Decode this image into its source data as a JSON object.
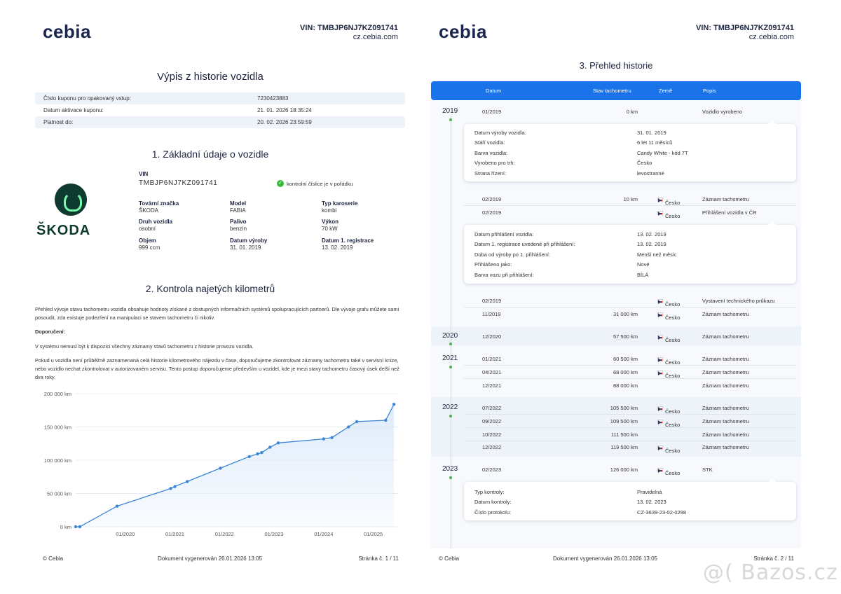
{
  "brand": {
    "logo_text": "cebia"
  },
  "header": {
    "vin": "VIN: TMBJP6NJ7KZ091741",
    "site": "cz.cebia.com"
  },
  "page1": {
    "title": "Výpis z historie vozidla",
    "coupon": [
      {
        "label": "Číslo kuponu pro opakovaný vstup:",
        "value": "7230423883"
      },
      {
        "label": "Datum aktivace kuponu:",
        "value": "21. 01. 2026 18:35:24"
      },
      {
        "label": "Platnost do:",
        "value": "20. 02. 2026 23:59:59"
      }
    ],
    "section1_title": "1. Základní údaje o vozidle",
    "make_logo_text": "ŠKODA",
    "vin_label": "VIN",
    "vin_value": "TMBJP6NJ7KZ091741",
    "vin_check": "kontrolní číslice je v pořádku",
    "attributes": [
      {
        "label": "Tovární značka",
        "value": "ŠKODA"
      },
      {
        "label": "Model",
        "value": "FABIA"
      },
      {
        "label": "Typ karoserie",
        "value": "kombi"
      },
      {
        "label": "Druh vozidla",
        "value": "osobní"
      },
      {
        "label": "Palivo",
        "value": "benzín"
      },
      {
        "label": "Výkon",
        "value": "70 kW"
      },
      {
        "label": "Objem",
        "value": "999 ccm"
      },
      {
        "label": "Datum výroby",
        "value": "31. 01. 2019"
      },
      {
        "label": "Datum 1. registrace",
        "value": "13. 02. 2019"
      }
    ],
    "section2_title": "2. Kontrola najetých kilometrů",
    "para1": "Přehled vývoje stavu tachometru vozidla obsahuje hodnoty získané z dostupných informačních systémů spolupracujících partnerů. Dle vývoje grafu můžete sami posoudit, zda existuje podezření na manipulaci se stavem tachometru či nikoliv.",
    "para2": "Doporučení:",
    "para3": "V systému nemusí být k dispozici všechny záznamy stavů tachometru z historie provozu vozidla.",
    "para4": "Pokud u vozidla není průběžně zaznamenaná celá historie kilometrového nájezdu v čase, doporučujeme zkontrolovat záznamy tachometru také v servisní knize, nebo vozidlo nechat zkontrolovat v autorizovaném servisu. Tento postup doporučujeme především u vozidel, kde je mezi stavy tachometru časový úsek delší než dva roky.",
    "footer_left": "© Cebia",
    "footer_mid": "Dokument vygenerován 26.01.2026 13:05",
    "footer_right": "Stránka č. 1 / 11"
  },
  "chart_data": {
    "type": "area",
    "title": "",
    "xlabel": "",
    "ylabel": "",
    "x_ticks": [
      "01/2020",
      "01/2021",
      "01/2022",
      "01/2023",
      "01/2024",
      "01/2025"
    ],
    "y_ticks": [
      "0 km",
      "50 000 km",
      "100 000 km",
      "150 000 km",
      "200 000 km"
    ],
    "ylim": [
      0,
      200000
    ],
    "xlim": [
      "2019-01",
      "2025-07"
    ],
    "series": [
      {
        "x": [
          "2019-01",
          "2019-02",
          "2019-11",
          "2020-12",
          "2021-01",
          "2021-04",
          "2021-12",
          "2022-07",
          "2022-09",
          "2022-10",
          "2022-12",
          "2023-02",
          "2024-01",
          "2024-03",
          "2024-07",
          "2024-09",
          "2025-04",
          "2025-06"
        ],
        "values": [
          0,
          10,
          31000,
          57500,
          60500,
          68000,
          88000,
          105500,
          109500,
          111500,
          119500,
          126000,
          132000,
          134000,
          150000,
          158000,
          160000,
          184000
        ]
      }
    ],
    "grid": true,
    "colors": {
      "line": "#3b86d6",
      "fill": "#dceafa"
    }
  },
  "page2": {
    "title": "3. Přehled historie",
    "columns": [
      "Datum",
      "Stav tachometru",
      "Země",
      "Popis"
    ],
    "years": [
      "2019",
      "2020",
      "2021",
      "2022",
      "2023"
    ],
    "rows": [
      {
        "date": "01/2019",
        "km": "0 km",
        "country": "",
        "desc": "Vozidlo vyrobeno"
      },
      {
        "date": "02/2019",
        "km": "10 km",
        "country": "Česko",
        "desc": "Záznam tachometru"
      },
      {
        "date": "02/2019",
        "km": "",
        "country": "Česko",
        "desc": "Přihlášení vozidla v ČR"
      },
      {
        "date": "02/2019",
        "km": "",
        "country": "Česko",
        "desc": "Vystavení technického průkazu"
      },
      {
        "date": "11/2019",
        "km": "31 000 km",
        "country": "Česko",
        "desc": "Záznam tachometru"
      },
      {
        "date": "12/2020",
        "km": "57 500 km",
        "country": "Česko",
        "desc": "Záznam tachometru"
      },
      {
        "date": "01/2021",
        "km": "60 500 km",
        "country": "Česko",
        "desc": "Záznam tachometru"
      },
      {
        "date": "04/2021",
        "km": "68 000 km",
        "country": "Česko",
        "desc": "Záznam tachometru"
      },
      {
        "date": "12/2021",
        "km": "88 000 km",
        "country": "",
        "desc": "Záznam tachometru"
      },
      {
        "date": "07/2022",
        "km": "105 500 km",
        "country": "Česko",
        "desc": "Záznam tachometru"
      },
      {
        "date": "09/2022",
        "km": "109 500 km",
        "country": "Česko",
        "desc": "Záznam tachometru"
      },
      {
        "date": "10/2022",
        "km": "111 500 km",
        "country": "",
        "desc": "Záznam tachometru"
      },
      {
        "date": "12/2022",
        "km": "119 500 km",
        "country": "Česko",
        "desc": "Záznam tachometru"
      },
      {
        "date": "02/2023",
        "km": "126 000 km",
        "country": "Česko",
        "desc": "STK"
      }
    ],
    "detail1": [
      {
        "k": "Datum výroby vozidla:",
        "v": "31. 01. 2019"
      },
      {
        "k": "Stáří vozidla:",
        "v": "6 let 11 měsíců"
      },
      {
        "k": "Barva vozidla:",
        "v": "Candy White - kód 7T"
      },
      {
        "k": "Vyrobeno pro trh:",
        "v": "Česko"
      },
      {
        "k": "Strana řízení:",
        "v": "levostranné"
      }
    ],
    "detail2": [
      {
        "k": "Datum přihlášení vozidla:",
        "v": "13. 02. 2019"
      },
      {
        "k": "Datum 1. registrace uvedené při přihlášení:",
        "v": "13. 02. 2019"
      },
      {
        "k": "Doba od výroby po 1. přihlášení:",
        "v": "Menší než měsíc"
      },
      {
        "k": "Přihlášeno jako:",
        "v": "Nové"
      },
      {
        "k": "Barva vozu při přihlášení:",
        "v": "BÍLÁ"
      }
    ],
    "detail3": [
      {
        "k": "Typ kontroly:",
        "v": "Pravidelná"
      },
      {
        "k": "Datum kontroly:",
        "v": "13. 02. 2023"
      },
      {
        "k": "Číslo protokolu:",
        "v": "CZ-3639-23-02-0298"
      }
    ],
    "footer_left": "© Cebia",
    "footer_mid": "Dokument vygenerován 26.01.2026 13:05",
    "footer_right": "Stránka č. 2 / 11"
  },
  "watermark": "@( Bazos.cz"
}
